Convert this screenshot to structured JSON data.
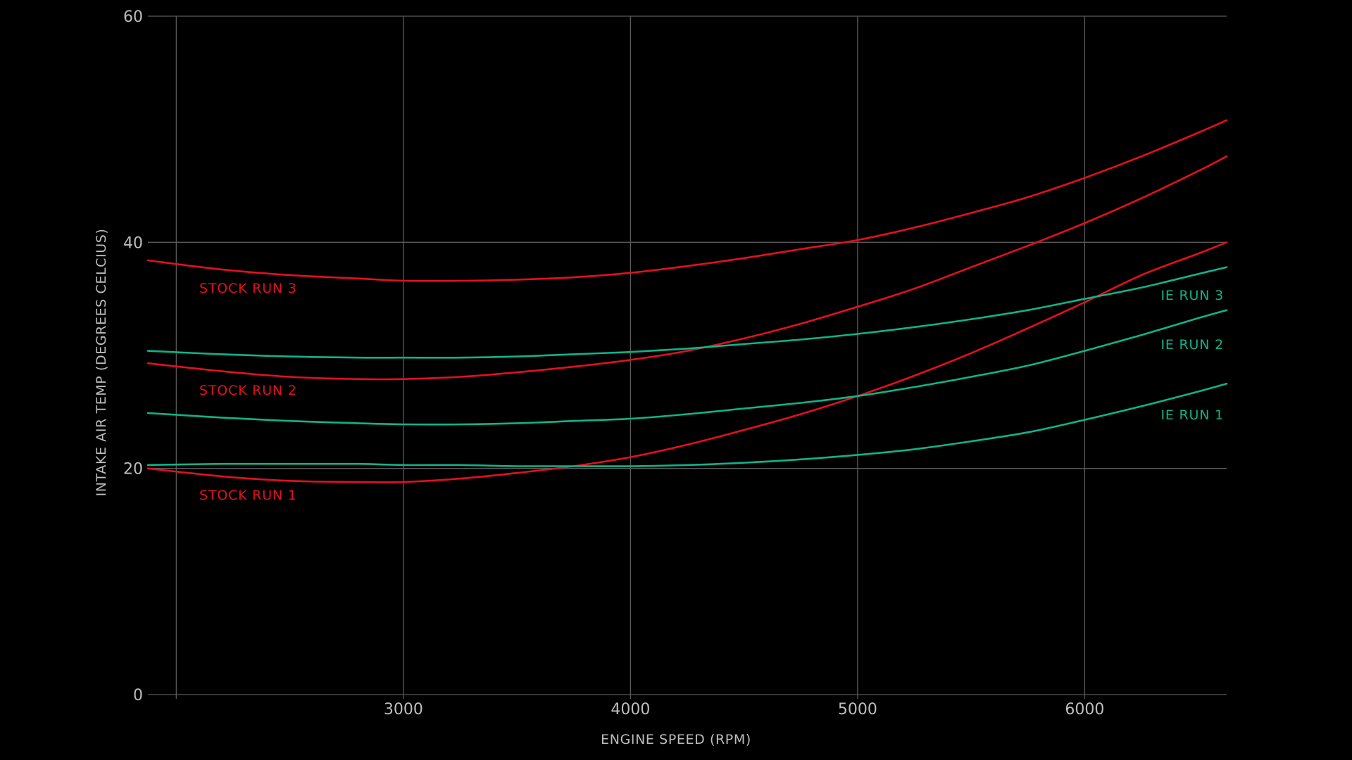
{
  "chart_data": {
    "type": "line",
    "xlabel": "ENGINE SPEED (RPM)",
    "ylabel": "INTAKE AIR TEMP (DEGREES CELCIUS)",
    "xlim": [
      1875,
      6625
    ],
    "ylim": [
      0,
      60
    ],
    "x_ticks": [
      3000,
      4000,
      5000,
      6000
    ],
    "y_ticks": [
      0,
      20,
      40,
      60
    ],
    "x_grid": [
      2000,
      3000,
      4000,
      5000,
      6000
    ],
    "y_grid": [
      20,
      40,
      60
    ],
    "grid": true,
    "colors": {
      "stock": "#e3101f",
      "ie": "#0fb38a",
      "grid": "#5a5a5a",
      "text": "#bdbdbd",
      "background": "#000000"
    },
    "series": [
      {
        "name": "STOCK RUN 1",
        "group": "stock",
        "x": [
          1875,
          2200,
          2500,
          2800,
          3000,
          3250,
          3500,
          3750,
          4000,
          4250,
          4500,
          4750,
          5000,
          5250,
          5500,
          5750,
          6000,
          6250,
          6500,
          6625
        ],
        "y": [
          20.0,
          19.3,
          18.9,
          18.8,
          18.8,
          19.1,
          19.6,
          20.2,
          21.0,
          22.1,
          23.4,
          24.8,
          26.4,
          28.2,
          30.2,
          32.4,
          34.7,
          37.1,
          39.0,
          40.0
        ]
      },
      {
        "name": "STOCK RUN 2",
        "group": "stock",
        "x": [
          1875,
          2200,
          2500,
          2800,
          3000,
          3250,
          3500,
          3750,
          4000,
          4250,
          4500,
          4750,
          5000,
          5250,
          5500,
          5750,
          6000,
          6250,
          6500,
          6625
        ],
        "y": [
          29.3,
          28.6,
          28.1,
          27.9,
          27.9,
          28.1,
          28.5,
          29.0,
          29.6,
          30.4,
          31.5,
          32.8,
          34.3,
          35.9,
          37.8,
          39.7,
          41.7,
          43.9,
          46.3,
          47.6
        ]
      },
      {
        "name": "STOCK RUN 3",
        "group": "stock",
        "x": [
          1875,
          2200,
          2500,
          2800,
          3000,
          3250,
          3500,
          3750,
          4000,
          4250,
          4500,
          4750,
          5000,
          5250,
          5500,
          5750,
          6000,
          6250,
          6500,
          6625
        ],
        "y": [
          38.4,
          37.6,
          37.1,
          36.8,
          36.6,
          36.6,
          36.7,
          36.9,
          37.3,
          37.9,
          38.6,
          39.4,
          40.2,
          41.3,
          42.6,
          44.0,
          45.7,
          47.6,
          49.7,
          50.8
        ]
      },
      {
        "name": "IE RUN 1",
        "group": "ie",
        "x": [
          1875,
          2200,
          2500,
          2800,
          3000,
          3250,
          3500,
          3750,
          4000,
          4250,
          4500,
          4750,
          5000,
          5250,
          5500,
          5750,
          6000,
          6250,
          6500,
          6625
        ],
        "y": [
          20.3,
          20.4,
          20.4,
          20.4,
          20.3,
          20.3,
          20.2,
          20.2,
          20.2,
          20.3,
          20.5,
          20.8,
          21.2,
          21.7,
          22.4,
          23.2,
          24.3,
          25.5,
          26.8,
          27.5
        ]
      },
      {
        "name": "IE RUN 2",
        "group": "ie",
        "x": [
          1875,
          2200,
          2500,
          2800,
          3000,
          3250,
          3500,
          3750,
          4000,
          4250,
          4500,
          4750,
          5000,
          5250,
          5500,
          5750,
          6000,
          6250,
          6500,
          6625
        ],
        "y": [
          24.9,
          24.5,
          24.2,
          24.0,
          23.9,
          23.9,
          24.0,
          24.2,
          24.4,
          24.8,
          25.3,
          25.8,
          26.4,
          27.2,
          28.1,
          29.1,
          30.4,
          31.8,
          33.3,
          34.0
        ]
      },
      {
        "name": "IE RUN 3",
        "group": "ie",
        "x": [
          1875,
          2200,
          2500,
          2800,
          3000,
          3250,
          3500,
          3750,
          4000,
          4250,
          4500,
          4750,
          5000,
          5250,
          5500,
          5750,
          6000,
          6250,
          6500,
          6625
        ],
        "y": [
          30.4,
          30.1,
          29.9,
          29.8,
          29.8,
          29.8,
          29.9,
          30.1,
          30.3,
          30.6,
          31.0,
          31.4,
          31.9,
          32.5,
          33.2,
          34.0,
          35.0,
          36.0,
          37.2,
          37.8
        ]
      }
    ]
  }
}
